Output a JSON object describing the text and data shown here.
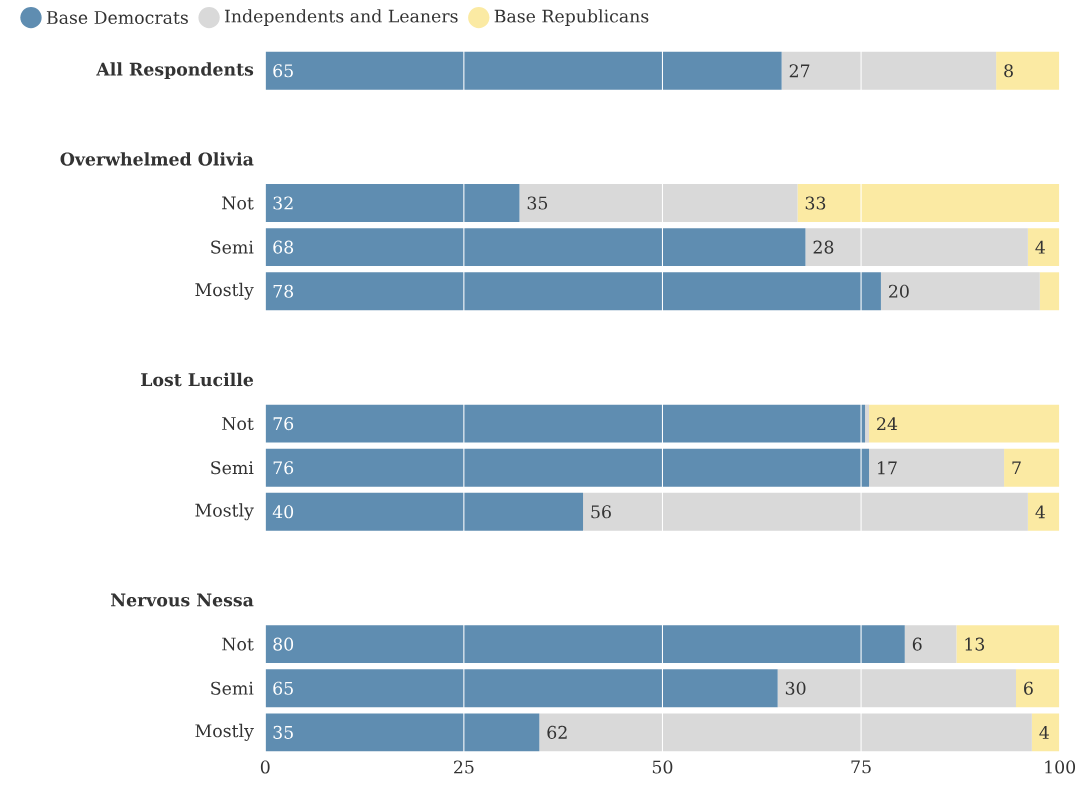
{
  "chart_data": {
    "type": "bar",
    "orientation": "horizontal",
    "stacked": true,
    "categories": [
      "**All Respondents**",
      "**Overwhelmed Olivia**",
      "Not",
      "Semi",
      "Mostly",
      "**Lost Lucille**",
      "Not",
      "Semi",
      "Mostly",
      "**Nervous Nessa**",
      "Not",
      "Semi",
      "Mostly"
    ],
    "series": [
      {
        "name": "Base Democrats",
        "color": "#5f8db1",
        "values": [
          65,
          null,
          32,
          68,
          77.5,
          null,
          75.5,
          76,
          40,
          null,
          80.5,
          64.5,
          34.5
        ],
        "value_labels": [
          "65",
          null,
          "32",
          "68",
          "78",
          null,
          "76",
          "76",
          "40",
          null,
          "80",
          "65",
          "35"
        ]
      },
      {
        "name": "Independents and Leaners",
        "color": "#d9d9d9",
        "values": [
          27,
          null,
          35,
          28,
          20,
          null,
          0.5,
          17,
          56,
          null,
          6.5,
          30,
          62
        ],
        "value_labels": [
          "27",
          null,
          "35",
          "28",
          "20",
          null,
          null,
          "17",
          "56",
          null,
          "6",
          "30",
          "62"
        ]
      },
      {
        "name": "Base Republicans",
        "color": "#fbeaa3",
        "values": [
          8,
          null,
          33,
          4,
          2.5,
          null,
          24,
          7,
          4,
          null,
          13,
          5.5,
          3.5
        ],
        "value_labels": [
          "8",
          null,
          "33",
          "4",
          null,
          null,
          "24",
          "7",
          "4",
          null,
          "13",
          "6",
          "4"
        ]
      }
    ],
    "xlim": [
      0,
      100
    ],
    "xticks": [
      0,
      25,
      50,
      75,
      100
    ],
    "grid": "x",
    "legend": "top left"
  }
}
